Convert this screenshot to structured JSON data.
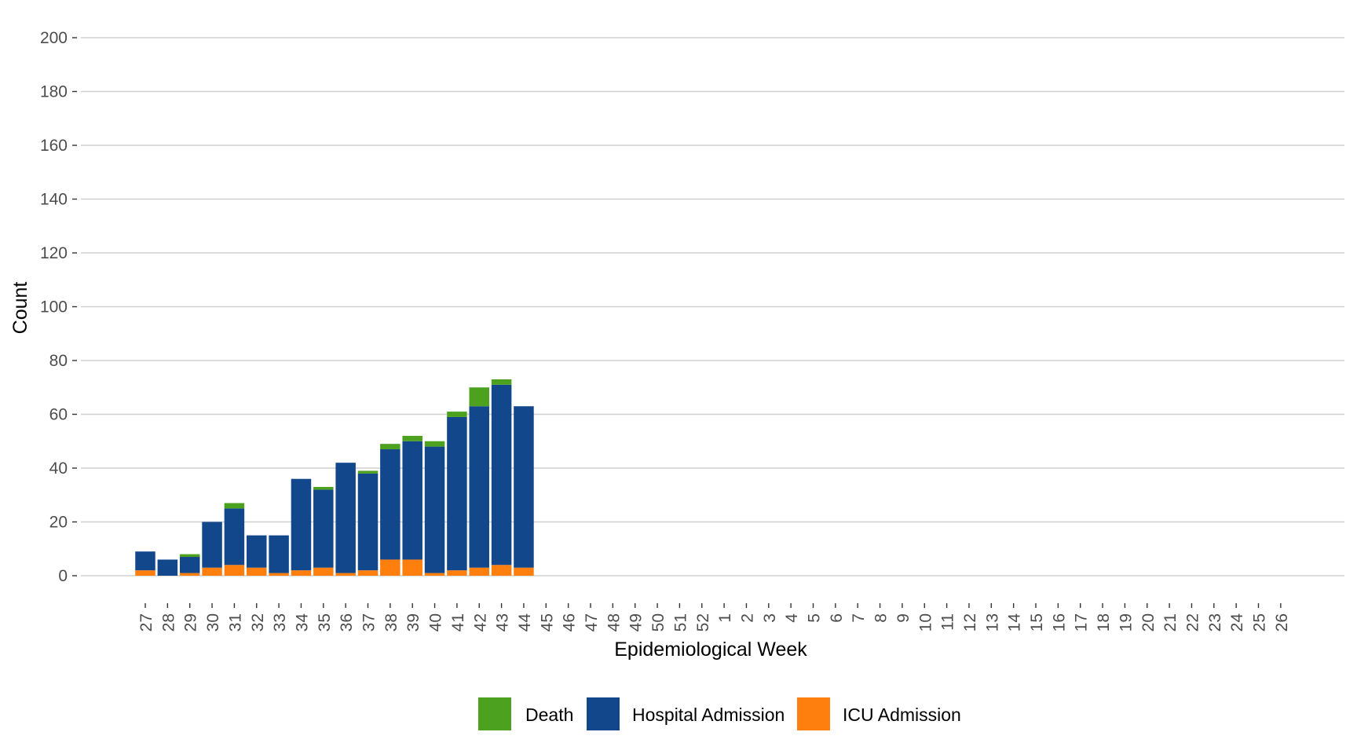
{
  "chart_data": {
    "type": "bar",
    "stacked": true,
    "xlabel": "Epidemiological Week",
    "ylabel": "Count",
    "ylim": [
      0,
      200
    ],
    "yticks": [
      0,
      20,
      40,
      60,
      80,
      100,
      120,
      140,
      160,
      180,
      200
    ],
    "grid": true,
    "legend_position": "bottom",
    "categories": [
      "27",
      "28",
      "29",
      "30",
      "31",
      "32",
      "33",
      "34",
      "35",
      "36",
      "37",
      "38",
      "39",
      "40",
      "41",
      "42",
      "43",
      "44",
      "45",
      "46",
      "47",
      "48",
      "49",
      "50",
      "51",
      "52",
      "1",
      "2",
      "3",
      "4",
      "5",
      "6",
      "7",
      "8",
      "9",
      "10",
      "11",
      "12",
      "13",
      "14",
      "15",
      "16",
      "17",
      "18",
      "19",
      "20",
      "21",
      "22",
      "23",
      "24",
      "25",
      "26"
    ],
    "series": [
      {
        "name": "ICU Admission",
        "color": "#ff7f0e",
        "values": [
          2,
          0,
          1,
          3,
          4,
          3,
          1,
          2,
          3,
          1,
          2,
          6,
          6,
          1,
          2,
          3,
          4,
          3,
          0,
          0,
          0,
          0,
          0,
          0,
          0,
          0,
          0,
          0,
          0,
          0,
          0,
          0,
          0,
          0,
          0,
          0,
          0,
          0,
          0,
          0,
          0,
          0,
          0,
          0,
          0,
          0,
          0,
          0,
          0,
          0,
          0,
          0
        ]
      },
      {
        "name": "Hospital Admission",
        "color": "#13478c",
        "values": [
          7,
          6,
          6,
          17,
          21,
          12,
          14,
          34,
          29,
          41,
          36,
          41,
          44,
          47,
          57,
          60,
          67,
          60,
          0,
          0,
          0,
          0,
          0,
          0,
          0,
          0,
          0,
          0,
          0,
          0,
          0,
          0,
          0,
          0,
          0,
          0,
          0,
          0,
          0,
          0,
          0,
          0,
          0,
          0,
          0,
          0,
          0,
          0,
          0,
          0,
          0,
          0
        ]
      },
      {
        "name": "Death",
        "color": "#4ca21f",
        "values": [
          0,
          0,
          1,
          0,
          2,
          0,
          0,
          0,
          1,
          0,
          1,
          2,
          2,
          2,
          2,
          7,
          2,
          0,
          0,
          0,
          0,
          0,
          0,
          0,
          0,
          0,
          0,
          0,
          0,
          0,
          0,
          0,
          0,
          0,
          0,
          0,
          0,
          0,
          0,
          0,
          0,
          0,
          0,
          0,
          0,
          0,
          0,
          0,
          0,
          0,
          0,
          0
        ]
      }
    ],
    "legend_order": [
      "Death",
      "Hospital Admission",
      "ICU Admission"
    ]
  }
}
